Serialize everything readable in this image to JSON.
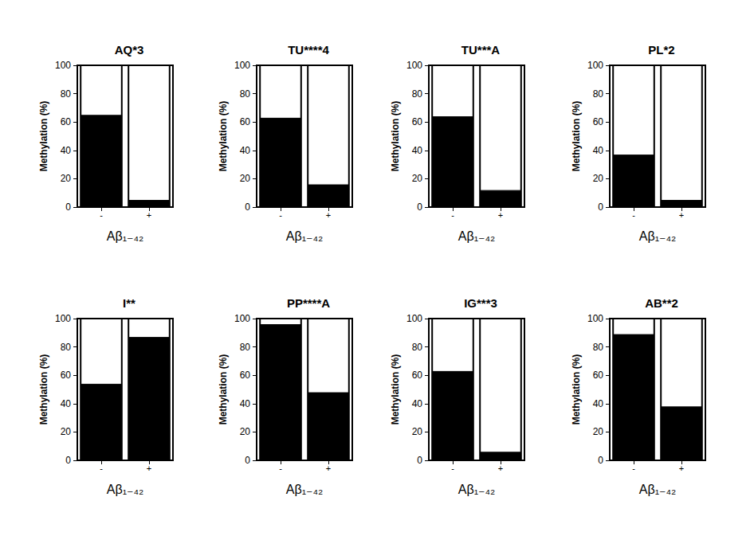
{
  "chart_data": [
    {
      "type": "bar",
      "title": "AQ*3",
      "categories": [
        "-",
        "+"
      ],
      "values": [
        65,
        5
      ],
      "color": "#000000",
      "ylim": [
        0,
        100
      ],
      "yticks": [
        0,
        20,
        40,
        60,
        80,
        100
      ],
      "ylabel": "Methylation (%)",
      "xlabel": "Aβ₁₋₄₂",
      "grid": false
    },
    {
      "type": "bar",
      "title": "TU****4",
      "categories": [
        "-",
        "+"
      ],
      "values": [
        63,
        16
      ],
      "color": "#000000",
      "ylim": [
        0,
        100
      ],
      "yticks": [
        0,
        20,
        40,
        60,
        80,
        100
      ],
      "ylabel": "Methylation (%)",
      "xlabel": "Aβ₁₋₄₂",
      "grid": false
    },
    {
      "type": "bar",
      "title": "TU***A",
      "categories": [
        "-",
        "+"
      ],
      "values": [
        64,
        12
      ],
      "color": "#000000",
      "ylim": [
        0,
        100
      ],
      "yticks": [
        0,
        20,
        40,
        60,
        80,
        100
      ],
      "ylabel": "Methylation (%)",
      "xlabel": "Aβ₁₋₄₂",
      "grid": false
    },
    {
      "type": "bar",
      "title": "PL*2",
      "categories": [
        "-",
        "+"
      ],
      "values": [
        37,
        5
      ],
      "color": "#000000",
      "ylim": [
        0,
        100
      ],
      "yticks": [
        0,
        20,
        40,
        60,
        80,
        100
      ],
      "ylabel": "Methylation (%)",
      "xlabel": "Aβ₁₋₄₂",
      "grid": false
    },
    {
      "type": "bar",
      "title": "I**",
      "categories": [
        "-",
        "+"
      ],
      "values": [
        54,
        87
      ],
      "color": "#000000",
      "ylim": [
        0,
        100
      ],
      "yticks": [
        0,
        20,
        40,
        60,
        80,
        100
      ],
      "ylabel": "Methylation (%)",
      "xlabel": "Aβ₁₋₄₂",
      "grid": false
    },
    {
      "type": "bar",
      "title": "PP****A",
      "categories": [
        "-",
        "+"
      ],
      "values": [
        96,
        48
      ],
      "color": "#000000",
      "ylim": [
        0,
        100
      ],
      "yticks": [
        0,
        20,
        40,
        60,
        80,
        100
      ],
      "ylabel": "Methylation (%)",
      "xlabel": "Aβ₁₋₄₂",
      "grid": false
    },
    {
      "type": "bar",
      "title": "IG***3",
      "categories": [
        "-",
        "+"
      ],
      "values": [
        63,
        6
      ],
      "color": "#000000",
      "ylim": [
        0,
        100
      ],
      "yticks": [
        0,
        20,
        40,
        60,
        80,
        100
      ],
      "ylabel": "Methylation (%)",
      "xlabel": "Aβ₁₋₄₂",
      "grid": false
    },
    {
      "type": "bar",
      "title": "AB**2",
      "categories": [
        "-",
        "+"
      ],
      "values": [
        89,
        38
      ],
      "color": "#000000",
      "ylim": [
        0,
        100
      ],
      "yticks": [
        0,
        20,
        40,
        60,
        80,
        100
      ],
      "ylabel": "Methylation (%)",
      "xlabel": "Aβ₁₋₄₂",
      "grid": false
    }
  ]
}
